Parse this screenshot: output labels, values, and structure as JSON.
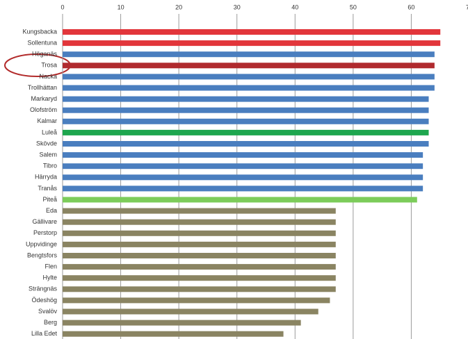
{
  "chart_data": {
    "type": "barh",
    "categories": [
      "Kungsbacka",
      "Sollentuna",
      "Höganäs",
      "Trosa",
      "Nacka",
      "Trollhättan",
      "Markaryd",
      "Olofström",
      "Kalmar",
      "Luleå",
      "Skövde",
      "Salem",
      "Tibro",
      "Härryda",
      "Tranås",
      "Piteå",
      "Eda",
      "Gällivare",
      "Perstorp",
      "Uppvidinge",
      "Bengtsfors",
      "Flen",
      "Hylte",
      "Strängnäs",
      "Ödeshög",
      "Svalöv",
      "Berg",
      "Lilla Edet"
    ],
    "values": [
      65,
      65,
      64,
      64,
      64,
      64,
      63,
      63,
      63,
      63,
      63,
      62,
      62,
      62,
      62,
      61,
      47,
      47,
      47,
      47,
      47,
      47,
      47,
      47,
      46,
      44,
      41,
      38
    ],
    "colors": [
      "#e2363b",
      "#e2363b",
      "#4a7ebf",
      "#b02a2e",
      "#4a7ebf",
      "#4a7ebf",
      "#4a7ebf",
      "#4a7ebf",
      "#4a7ebf",
      "#1ea64e",
      "#4a7ebf",
      "#4a7ebf",
      "#4a7ebf",
      "#4a7ebf",
      "#4a7ebf",
      "#7ccc5a",
      "#8a8462",
      "#8a8462",
      "#8a8462",
      "#8a8462",
      "#8a8462",
      "#8a8462",
      "#8a8462",
      "#8a8462",
      "#8a8462",
      "#8a8462",
      "#8a8462",
      "#8a8462"
    ],
    "xlim": [
      0,
      70
    ],
    "xticks": [
      0,
      10,
      20,
      30,
      40,
      50,
      60,
      70
    ],
    "grid": true
  }
}
